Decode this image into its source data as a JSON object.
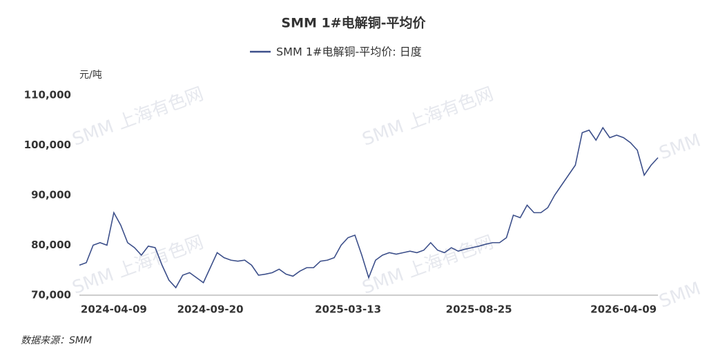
{
  "chart_data": {
    "type": "line",
    "title": "SMM 1#电解铜-平均价",
    "y_label": "元/吨",
    "source": "数据来源：SMM",
    "watermark": "SMM 上海有色网",
    "categories": [
      null,
      null,
      null,
      null,
      null,
      "2024-04-09",
      null,
      null,
      null,
      null,
      null,
      null,
      null,
      null,
      null,
      null,
      null,
      null,
      null,
      "2024-09-20",
      null,
      null,
      null,
      null,
      null,
      null,
      null,
      null,
      null,
      null,
      null,
      null,
      null,
      null,
      null,
      null,
      null,
      null,
      null,
      "2025-03-13",
      null,
      null,
      null,
      null,
      null,
      null,
      null,
      null,
      null,
      null,
      null,
      null,
      null,
      null,
      null,
      null,
      null,
      null,
      "2025-08-25",
      null,
      null,
      null,
      null,
      null,
      null,
      null,
      null,
      null,
      null,
      null,
      null,
      null,
      null,
      null,
      null,
      null,
      null,
      null,
      null,
      "2026-04-09",
      null,
      null,
      null,
      null,
      null
    ],
    "series": [
      {
        "name": "SMM 1#电解铜-平均价: 日度",
        "color": "#3c4f8a",
        "values": [
          76000,
          76500,
          80000,
          80500,
          80000,
          86500,
          84000,
          80500,
          79500,
          78000,
          79800,
          79500,
          76000,
          73000,
          71500,
          74000,
          74500,
          73500,
          72500,
          75500,
          78500,
          77500,
          77000,
          76800,
          77000,
          76000,
          74000,
          74200,
          74500,
          75200,
          74200,
          73800,
          74800,
          75500,
          75500,
          76800,
          77000,
          77500,
          80000,
          81500,
          82000,
          78000,
          73500,
          77000,
          78000,
          78500,
          78200,
          78500,
          78800,
          78500,
          79000,
          80500,
          79000,
          78500,
          79500,
          78800,
          79200,
          79500,
          79800,
          80200,
          80500,
          80500,
          81500,
          86000,
          85500,
          88000,
          86500,
          86500,
          87500,
          90000,
          92000,
          94000,
          96000,
          102500,
          103000,
          101000,
          103500,
          101500,
          102000,
          101500,
          100500,
          99000,
          94000,
          96000,
          97500
        ]
      }
    ],
    "ylim": [
      70000,
      110000
    ],
    "yticks": [
      {
        "value": 70000,
        "label": "70,000"
      },
      {
        "value": 80000,
        "label": "80,000"
      },
      {
        "value": 90000,
        "label": "90,000"
      },
      {
        "value": 100000,
        "label": "100,000"
      },
      {
        "value": 110000,
        "label": "110,000"
      }
    ],
    "grid": false
  }
}
